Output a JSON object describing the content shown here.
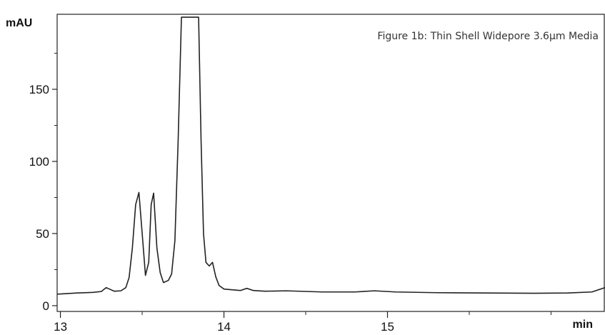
{
  "chart_data": {
    "type": "line",
    "title": "Figure 1b: Thin Shell Widepore 3.6µm Media",
    "ylabel": "mAU",
    "xlabel": "min",
    "xlim": [
      12.98,
      16.33
    ],
    "ylim": [
      -4,
      202
    ],
    "x_ticks": [
      13,
      14,
      15
    ],
    "x_tick_labels": [
      "13",
      "14",
      "15"
    ],
    "x_minor_ticks": [
      13.5,
      14.5,
      15.5,
      16
    ],
    "y_ticks": [
      0,
      50,
      100,
      150
    ],
    "y_tick_labels": [
      "0",
      "50",
      "100",
      "150"
    ],
    "y_minor_ticks": [
      25,
      75,
      125,
      175
    ],
    "grid": false,
    "legend": "none",
    "line_color": "#222222",
    "series": [
      {
        "x": [
          12.98,
          13.1,
          13.2,
          13.25,
          13.28,
          13.3,
          13.33,
          13.37,
          13.4,
          13.42,
          13.44,
          13.46,
          13.48,
          13.5,
          13.52,
          13.54,
          13.555,
          13.57,
          13.59,
          13.61,
          13.63,
          13.66,
          13.68,
          13.7,
          13.72,
          13.74,
          13.76,
          13.79,
          13.82,
          13.845,
          13.86,
          13.875,
          13.89,
          13.91,
          13.93,
          13.95,
          13.97,
          14.0,
          14.05,
          14.1,
          14.14,
          14.18,
          14.25,
          14.38,
          14.6,
          14.8,
          14.92,
          15.05,
          15.3,
          15.6,
          15.9,
          16.1,
          16.25,
          16.33
        ],
        "y": [
          8,
          8.8,
          9.2,
          9.8,
          12.5,
          11.5,
          10,
          10.3,
          12.5,
          19.5,
          40,
          70,
          78.5,
          50,
          21,
          30,
          70,
          78,
          40,
          23,
          16,
          17.5,
          22,
          45,
          115,
          200,
          200,
          200,
          200,
          200,
          115,
          50,
          30,
          27.5,
          30,
          20,
          14,
          11.5,
          11,
          10.5,
          12,
          10.5,
          10,
          10.3,
          9.5,
          9.5,
          10.3,
          9.5,
          9,
          8.8,
          8.6,
          8.8,
          9.5,
          12.5
        ]
      }
    ]
  }
}
